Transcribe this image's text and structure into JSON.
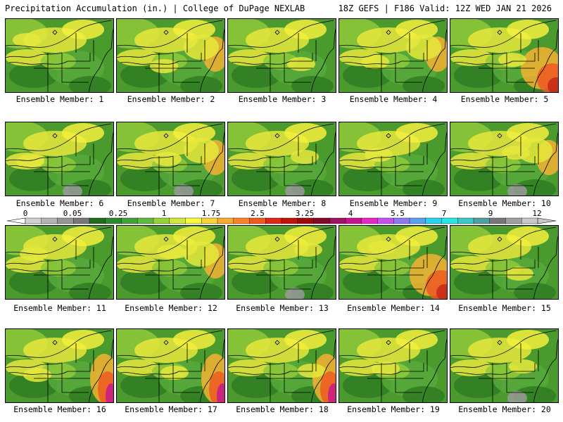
{
  "header": {
    "left": "Precipitation Accumulation (in.) | College of DuPage NEXLAB",
    "right": "18Z GEFS | F186 Valid: 12Z WED JAN 21 2026"
  },
  "colorbar": {
    "ticks": [
      "0",
      "0.05",
      "0.25",
      "1",
      "1.75",
      "2.5",
      "3.25",
      "4",
      "5.5",
      "7",
      "9",
      "12"
    ],
    "colors": [
      "#d0d0d0",
      "#b4b4b4",
      "#969696",
      "#787878",
      "#1e6e1e",
      "#2e8a2e",
      "#40a43a",
      "#60bc3e",
      "#96d23a",
      "#d2e63c",
      "#fafa3c",
      "#fad23c",
      "#faaa32",
      "#fa8228",
      "#f05a1e",
      "#dc2814",
      "#c0140a",
      "#a00a0a",
      "#820a28",
      "#9c1464",
      "#c8148c",
      "#e628c8",
      "#c850f0",
      "#8c78f0",
      "#5aa0f0",
      "#28d2f0",
      "#28e6e6",
      "#3cc8c8",
      "#50a0a0",
      "#787878",
      "#a0a0a0",
      "#c8c8c8"
    ]
  },
  "panels": [
    {
      "label": "Ensemble Member: 1"
    },
    {
      "label": "Ensemble Member: 2"
    },
    {
      "label": "Ensemble Member: 3"
    },
    {
      "label": "Ensemble Member: 4"
    },
    {
      "label": "Ensemble Member: 5"
    },
    {
      "label": "Ensemble Member: 6"
    },
    {
      "label": "Ensemble Member: 7"
    },
    {
      "label": "Ensemble Member: 8"
    },
    {
      "label": "Ensemble Member: 9"
    },
    {
      "label": "Ensemble Member: 10"
    },
    {
      "label": "Ensemble Member: 11"
    },
    {
      "label": "Ensemble Member: 12"
    },
    {
      "label": "Ensemble Member: 13"
    },
    {
      "label": "Ensemble Member: 14"
    },
    {
      "label": "Ensemble Member: 15"
    },
    {
      "label": "Ensemble Member: 16"
    },
    {
      "label": "Ensemble Member: 17"
    },
    {
      "label": "Ensemble Member: 18"
    },
    {
      "label": "Ensemble Member: 19"
    },
    {
      "label": "Ensemble Member: 20"
    }
  ]
}
